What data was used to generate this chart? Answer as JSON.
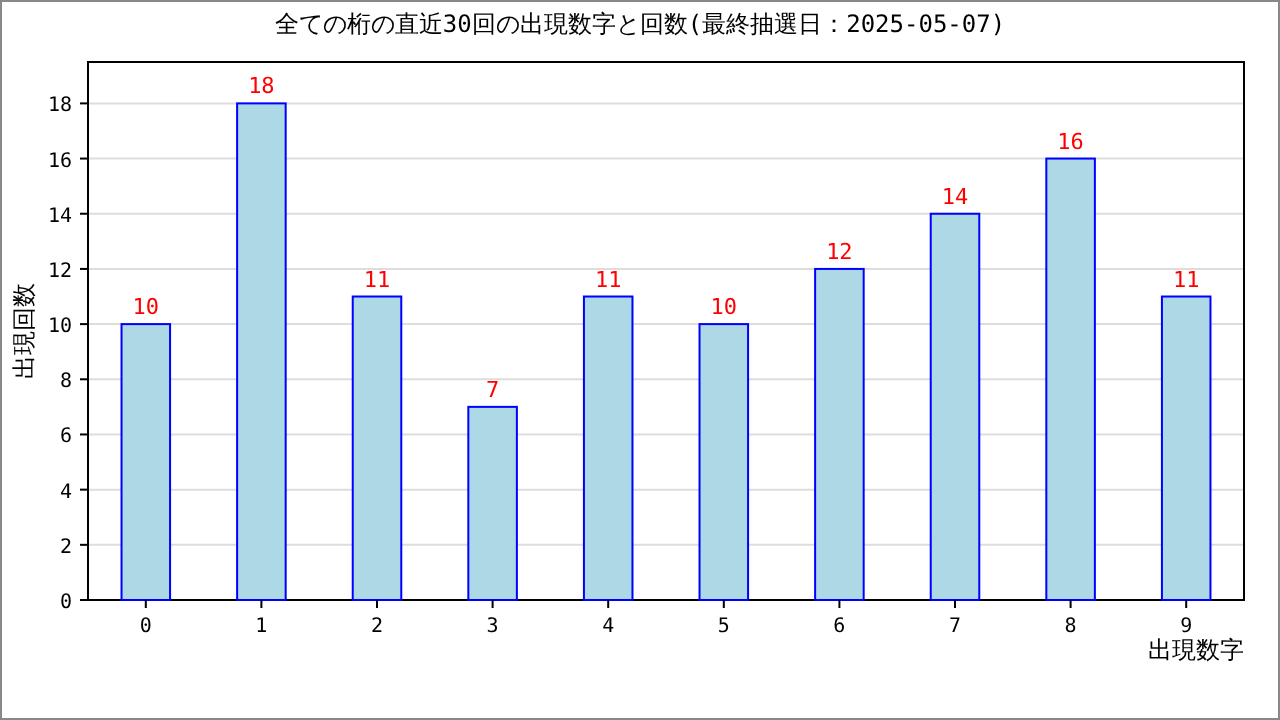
{
  "chart_data": {
    "type": "bar",
    "title": "全ての桁の直近30回の出現数字と回数(最終抽選日：2025-05-07)",
    "xlabel": "出現数字",
    "ylabel": "出現回数",
    "categories": [
      "0",
      "1",
      "2",
      "3",
      "4",
      "5",
      "6",
      "7",
      "8",
      "9"
    ],
    "values": [
      10,
      18,
      11,
      7,
      11,
      10,
      12,
      14,
      16,
      11
    ],
    "color": "#add8e6",
    "ylim": [
      0,
      19.5
    ],
    "yticks": [
      0,
      2,
      4,
      6,
      8,
      10,
      12,
      14,
      16,
      18
    ],
    "grid": "y",
    "data_labels": true
  }
}
